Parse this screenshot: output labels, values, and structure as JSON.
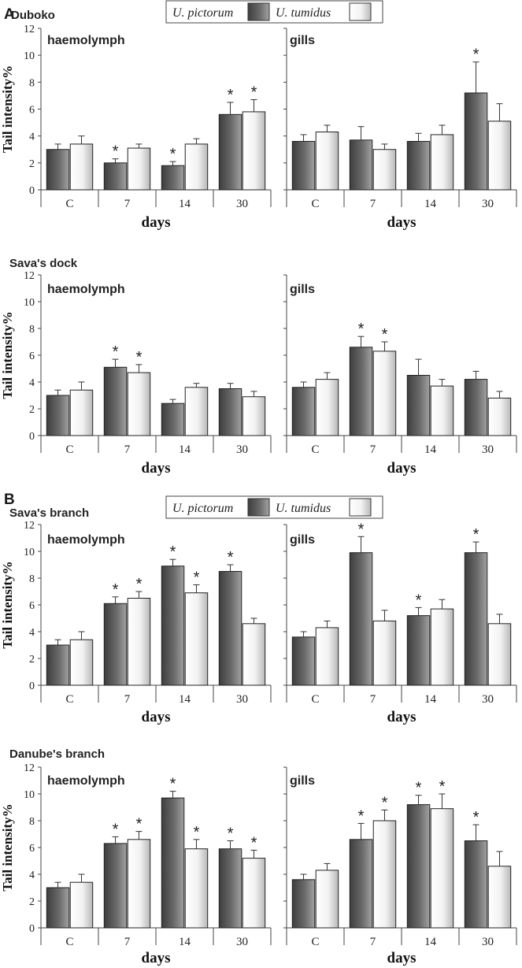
{
  "figure": {
    "panels": [
      {
        "letter": "A",
        "legend": {
          "series1": "U. pictorum",
          "series2": "U. tumidus"
        }
      },
      {
        "letter": "B",
        "legend": {
          "series1": "U. pictorum",
          "series2": "U. tumidus"
        }
      }
    ],
    "colors": {
      "pictorum_dark": "#4a4a4a",
      "pictorum_light": "#9a9a9a",
      "tumidus_light": "#ffffff",
      "tumidus_dark": "#b5b5b5",
      "axis": "#333333"
    }
  },
  "chart_data": [
    {
      "type": "bar",
      "site": "Duboko",
      "tissue": "haemolymph",
      "categories": [
        "C",
        "7",
        "14",
        "30"
      ],
      "ylabel": "Tail intensity%",
      "xlabel": "days",
      "ylim": [
        0,
        12
      ],
      "yticks": [
        0,
        2,
        4,
        6,
        8,
        10,
        12
      ],
      "series": [
        {
          "name": "U. pictorum",
          "values": [
            3.0,
            2.0,
            1.8,
            5.6
          ],
          "errors": [
            0.4,
            0.3,
            0.3,
            0.9
          ],
          "significant": [
            false,
            true,
            true,
            true
          ]
        },
        {
          "name": "U. tumidus",
          "values": [
            3.4,
            3.1,
            3.4,
            5.8
          ],
          "errors": [
            0.6,
            0.3,
            0.4,
            0.9
          ],
          "significant": [
            false,
            false,
            false,
            true
          ]
        }
      ]
    },
    {
      "type": "bar",
      "site": "",
      "tissue": "gills",
      "categories": [
        "C",
        "7",
        "14",
        "30"
      ],
      "ylabel": "",
      "xlabel": "days",
      "ylim": [
        0,
        12
      ],
      "yticks": [
        0,
        2,
        4,
        6,
        8,
        10,
        12
      ],
      "series": [
        {
          "name": "U. pictorum",
          "values": [
            3.6,
            3.7,
            3.6,
            7.2
          ],
          "errors": [
            0.5,
            1.0,
            0.6,
            2.3
          ],
          "significant": [
            false,
            false,
            false,
            true
          ]
        },
        {
          "name": "U. tumidus",
          "values": [
            4.3,
            3.0,
            4.1,
            5.1
          ],
          "errors": [
            0.5,
            0.4,
            0.7,
            1.3
          ],
          "significant": [
            false,
            false,
            false,
            false
          ]
        }
      ]
    },
    {
      "type": "bar",
      "site": "Sava's dock",
      "tissue": "haemolymph",
      "categories": [
        "C",
        "7",
        "14",
        "30"
      ],
      "ylabel": "Tail intensity%",
      "xlabel": "days",
      "ylim": [
        0,
        12
      ],
      "yticks": [
        0,
        2,
        4,
        6,
        8,
        10,
        12
      ],
      "series": [
        {
          "name": "U. pictorum",
          "values": [
            3.0,
            5.1,
            2.4,
            3.5
          ],
          "errors": [
            0.4,
            0.6,
            0.3,
            0.4
          ],
          "significant": [
            false,
            true,
            false,
            false
          ]
        },
        {
          "name": "U. tumidus",
          "values": [
            3.4,
            4.7,
            3.6,
            2.9
          ],
          "errors": [
            0.6,
            0.6,
            0.3,
            0.4
          ],
          "significant": [
            false,
            true,
            false,
            false
          ]
        }
      ]
    },
    {
      "type": "bar",
      "site": "",
      "tissue": "gills",
      "categories": [
        "C",
        "7",
        "14",
        "30"
      ],
      "ylabel": "",
      "xlabel": "days",
      "ylim": [
        0,
        12
      ],
      "yticks": [
        0,
        2,
        4,
        6,
        8,
        10,
        12
      ],
      "series": [
        {
          "name": "U. pictorum",
          "values": [
            3.6,
            6.6,
            4.5,
            4.2
          ],
          "errors": [
            0.4,
            0.8,
            1.2,
            0.6
          ],
          "significant": [
            false,
            true,
            false,
            false
          ]
        },
        {
          "name": "U. tumidus",
          "values": [
            4.2,
            6.3,
            3.7,
            2.8
          ],
          "errors": [
            0.5,
            0.7,
            0.5,
            0.5
          ],
          "significant": [
            false,
            true,
            false,
            false
          ]
        }
      ]
    },
    {
      "type": "bar",
      "site": "Sava's  branch",
      "tissue": "haemolymph",
      "categories": [
        "C",
        "7",
        "14",
        "30"
      ],
      "ylabel": "Tail intensity%",
      "xlabel": "days",
      "ylim": [
        0,
        12
      ],
      "yticks": [
        0,
        2,
        4,
        6,
        8,
        10,
        12
      ],
      "series": [
        {
          "name": "U. pictorum",
          "values": [
            3.0,
            6.1,
            8.9,
            8.5
          ],
          "errors": [
            0.4,
            0.5,
            0.5,
            0.5
          ],
          "significant": [
            false,
            true,
            true,
            true
          ]
        },
        {
          "name": "U. tumidus",
          "values": [
            3.4,
            6.5,
            6.9,
            4.6
          ],
          "errors": [
            0.6,
            0.5,
            0.6,
            0.4
          ],
          "significant": [
            false,
            true,
            true,
            false
          ]
        }
      ]
    },
    {
      "type": "bar",
      "site": "",
      "tissue": "gills",
      "categories": [
        "C",
        "7",
        "14",
        "30"
      ],
      "ylabel": "",
      "xlabel": "days",
      "ylim": [
        0,
        12
      ],
      "yticks": [
        0,
        2,
        4,
        6,
        8,
        10,
        12
      ],
      "series": [
        {
          "name": "U. pictorum",
          "values": [
            3.6,
            9.9,
            5.2,
            9.9
          ],
          "errors": [
            0.4,
            1.2,
            0.6,
            0.8
          ],
          "significant": [
            false,
            true,
            true,
            true
          ]
        },
        {
          "name": "U. tumidus",
          "values": [
            4.3,
            4.8,
            5.7,
            4.6
          ],
          "errors": [
            0.5,
            0.8,
            0.7,
            0.7
          ],
          "significant": [
            false,
            false,
            false,
            false
          ]
        }
      ]
    },
    {
      "type": "bar",
      "site": "Danube's branch",
      "tissue": "haemolymph",
      "categories": [
        "C",
        "7",
        "14",
        "30"
      ],
      "ylabel": "Tail intensity%",
      "xlabel": "days",
      "ylim": [
        0,
        12
      ],
      "yticks": [
        0,
        2,
        4,
        6,
        8,
        10,
        12
      ],
      "series": [
        {
          "name": "U. pictorum",
          "values": [
            3.0,
            6.3,
            9.7,
            5.9
          ],
          "errors": [
            0.4,
            0.5,
            0.5,
            0.6
          ],
          "significant": [
            false,
            true,
            true,
            true
          ]
        },
        {
          "name": "U. tumidus",
          "values": [
            3.4,
            6.6,
            5.9,
            5.2
          ],
          "errors": [
            0.6,
            0.6,
            0.7,
            0.6
          ],
          "significant": [
            false,
            true,
            true,
            true
          ]
        }
      ]
    },
    {
      "type": "bar",
      "site": "",
      "tissue": "gills",
      "categories": [
        "C",
        "7",
        "14",
        "30"
      ],
      "ylabel": "",
      "xlabel": "days",
      "ylim": [
        0,
        12
      ],
      "yticks": [
        0,
        2,
        4,
        6,
        8,
        10,
        12
      ],
      "series": [
        {
          "name": "U. pictorum",
          "values": [
            3.6,
            6.6,
            9.2,
            6.5
          ],
          "errors": [
            0.4,
            1.2,
            0.7,
            1.2
          ],
          "significant": [
            false,
            true,
            true,
            true
          ]
        },
        {
          "name": "U. tumidus",
          "values": [
            4.3,
            8.0,
            8.9,
            4.6
          ],
          "errors": [
            0.5,
            0.8,
            1.1,
            1.1
          ],
          "significant": [
            false,
            true,
            true,
            false
          ]
        }
      ]
    }
  ]
}
